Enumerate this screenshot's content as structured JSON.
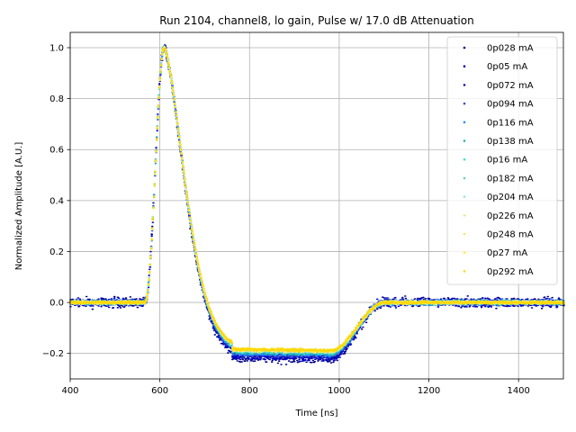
{
  "chart_data": {
    "type": "scatter",
    "title": "Run 2104, channel8, lo gain, Pulse w/ 17.0 dB Attenuation",
    "xlabel": "Time [ns]",
    "ylabel": "Normalized Amplitude [A.U.]",
    "xlim": [
      400,
      1500
    ],
    "ylim": [
      -0.3,
      1.06
    ],
    "xticks": [
      400,
      600,
      800,
      1000,
      1200,
      1400
    ],
    "yticks": [
      -0.2,
      0.0,
      0.2,
      0.4,
      0.6,
      0.8,
      1.0
    ],
    "xtick_labels": [
      "400",
      "600",
      "800",
      "1000",
      "1200",
      "1400"
    ],
    "ytick_labels": [
      "−0.2",
      "0.0",
      "0.2",
      "0.4",
      "0.6",
      "0.8",
      "1.0"
    ],
    "grid": true,
    "legend_position": "top-right",
    "pulse_shape": {
      "baseline_until_ns": 565,
      "peak_ns": 608,
      "peak_value": 1.0,
      "undershoot_start_ns": 760,
      "undershoot_end_ns": 980,
      "recovery_end_ns": 1100
    },
    "series": [
      {
        "name": "0p028 mA",
        "color": "#00008b",
        "undershoot": -0.215,
        "noise": 0.02
      },
      {
        "name": "0p05 mA",
        "color": "#0000cd",
        "undershoot": -0.21,
        "noise": 0.016
      },
      {
        "name": "0p072 mA",
        "color": "#1010c0",
        "undershoot": -0.205,
        "noise": 0.013
      },
      {
        "name": "0p094 mA",
        "color": "#3a4fcf",
        "undershoot": -0.2,
        "noise": 0.011
      },
      {
        "name": "0p116 mA",
        "color": "#1e90ff",
        "undershoot": -0.197,
        "noise": 0.01
      },
      {
        "name": "0p138 mA",
        "color": "#20b2aa",
        "undershoot": -0.194,
        "noise": 0.009
      },
      {
        "name": "0p16 mA",
        "color": "#40e0d0",
        "undershoot": -0.191,
        "noise": 0.008
      },
      {
        "name": "0p182 mA",
        "color": "#5fd3b3",
        "undershoot": -0.189,
        "noise": 0.008
      },
      {
        "name": "0p204 mA",
        "color": "#9be7e0",
        "undershoot": -0.187,
        "noise": 0.007
      },
      {
        "name": "0p226 mA",
        "color": "#f0e68c",
        "undershoot": -0.186,
        "noise": 0.007
      },
      {
        "name": "0p248 mA",
        "color": "#ffe36e",
        "undershoot": -0.185,
        "noise": 0.006
      },
      {
        "name": "0p27 mA",
        "color": "#ffec40",
        "undershoot": -0.184,
        "noise": 0.006
      },
      {
        "name": "0p292 mA",
        "color": "#ffd700",
        "undershoot": -0.183,
        "noise": 0.006
      }
    ]
  }
}
